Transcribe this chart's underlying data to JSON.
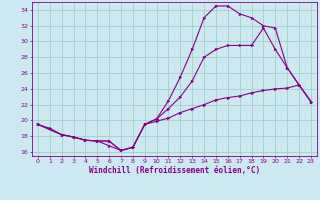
{
  "xlabel": "Windchill (Refroidissement éolien,°C)",
  "bg_color": "#cce8f0",
  "grid_color": "#99ccbb",
  "line_color": "#880088",
  "xlim": [
    -0.5,
    23.5
  ],
  "ylim": [
    15.5,
    35.0
  ],
  "yticks": [
    16,
    18,
    20,
    22,
    24,
    26,
    28,
    30,
    32,
    34
  ],
  "xticks": [
    0,
    1,
    2,
    3,
    4,
    5,
    6,
    7,
    8,
    9,
    10,
    11,
    12,
    13,
    14,
    15,
    16,
    17,
    18,
    19,
    20,
    21,
    22,
    23
  ],
  "curve1_x": [
    0,
    1,
    2,
    3,
    4,
    5,
    6,
    7,
    8,
    9,
    10,
    11,
    12,
    13,
    14,
    15,
    16,
    17,
    18,
    19,
    20,
    21,
    22,
    23
  ],
  "curve1_y": [
    19.5,
    19.0,
    18.2,
    17.9,
    17.5,
    17.4,
    16.8,
    16.2,
    16.6,
    19.5,
    19.9,
    20.3,
    21.0,
    21.5,
    22.0,
    22.6,
    22.9,
    23.1,
    23.5,
    23.8,
    24.0,
    24.1,
    24.5,
    22.4
  ],
  "curve2_x": [
    0,
    2,
    3,
    4,
    5,
    6,
    7,
    8,
    9,
    10,
    11,
    12,
    13,
    14,
    15,
    16,
    17,
    18,
    19,
    20,
    21,
    22,
    23
  ],
  "curve2_y": [
    19.5,
    18.2,
    17.9,
    17.5,
    17.4,
    17.4,
    16.2,
    16.6,
    19.5,
    20.2,
    21.5,
    23.0,
    25.0,
    28.0,
    29.0,
    29.5,
    29.5,
    29.5,
    31.7,
    29.0,
    26.7,
    24.5,
    22.4
  ],
  "curve3_x": [
    0,
    2,
    3,
    4,
    5,
    6,
    7,
    8,
    9,
    10,
    11,
    12,
    13,
    14,
    15,
    16,
    17,
    18,
    19,
    20,
    21,
    22,
    23
  ],
  "curve3_y": [
    19.5,
    18.2,
    17.9,
    17.5,
    17.4,
    17.4,
    16.2,
    16.6,
    19.5,
    20.2,
    22.5,
    25.5,
    29.0,
    33.0,
    34.5,
    34.5,
    33.5,
    33.0,
    32.0,
    31.7,
    26.7,
    24.5,
    22.4
  ]
}
